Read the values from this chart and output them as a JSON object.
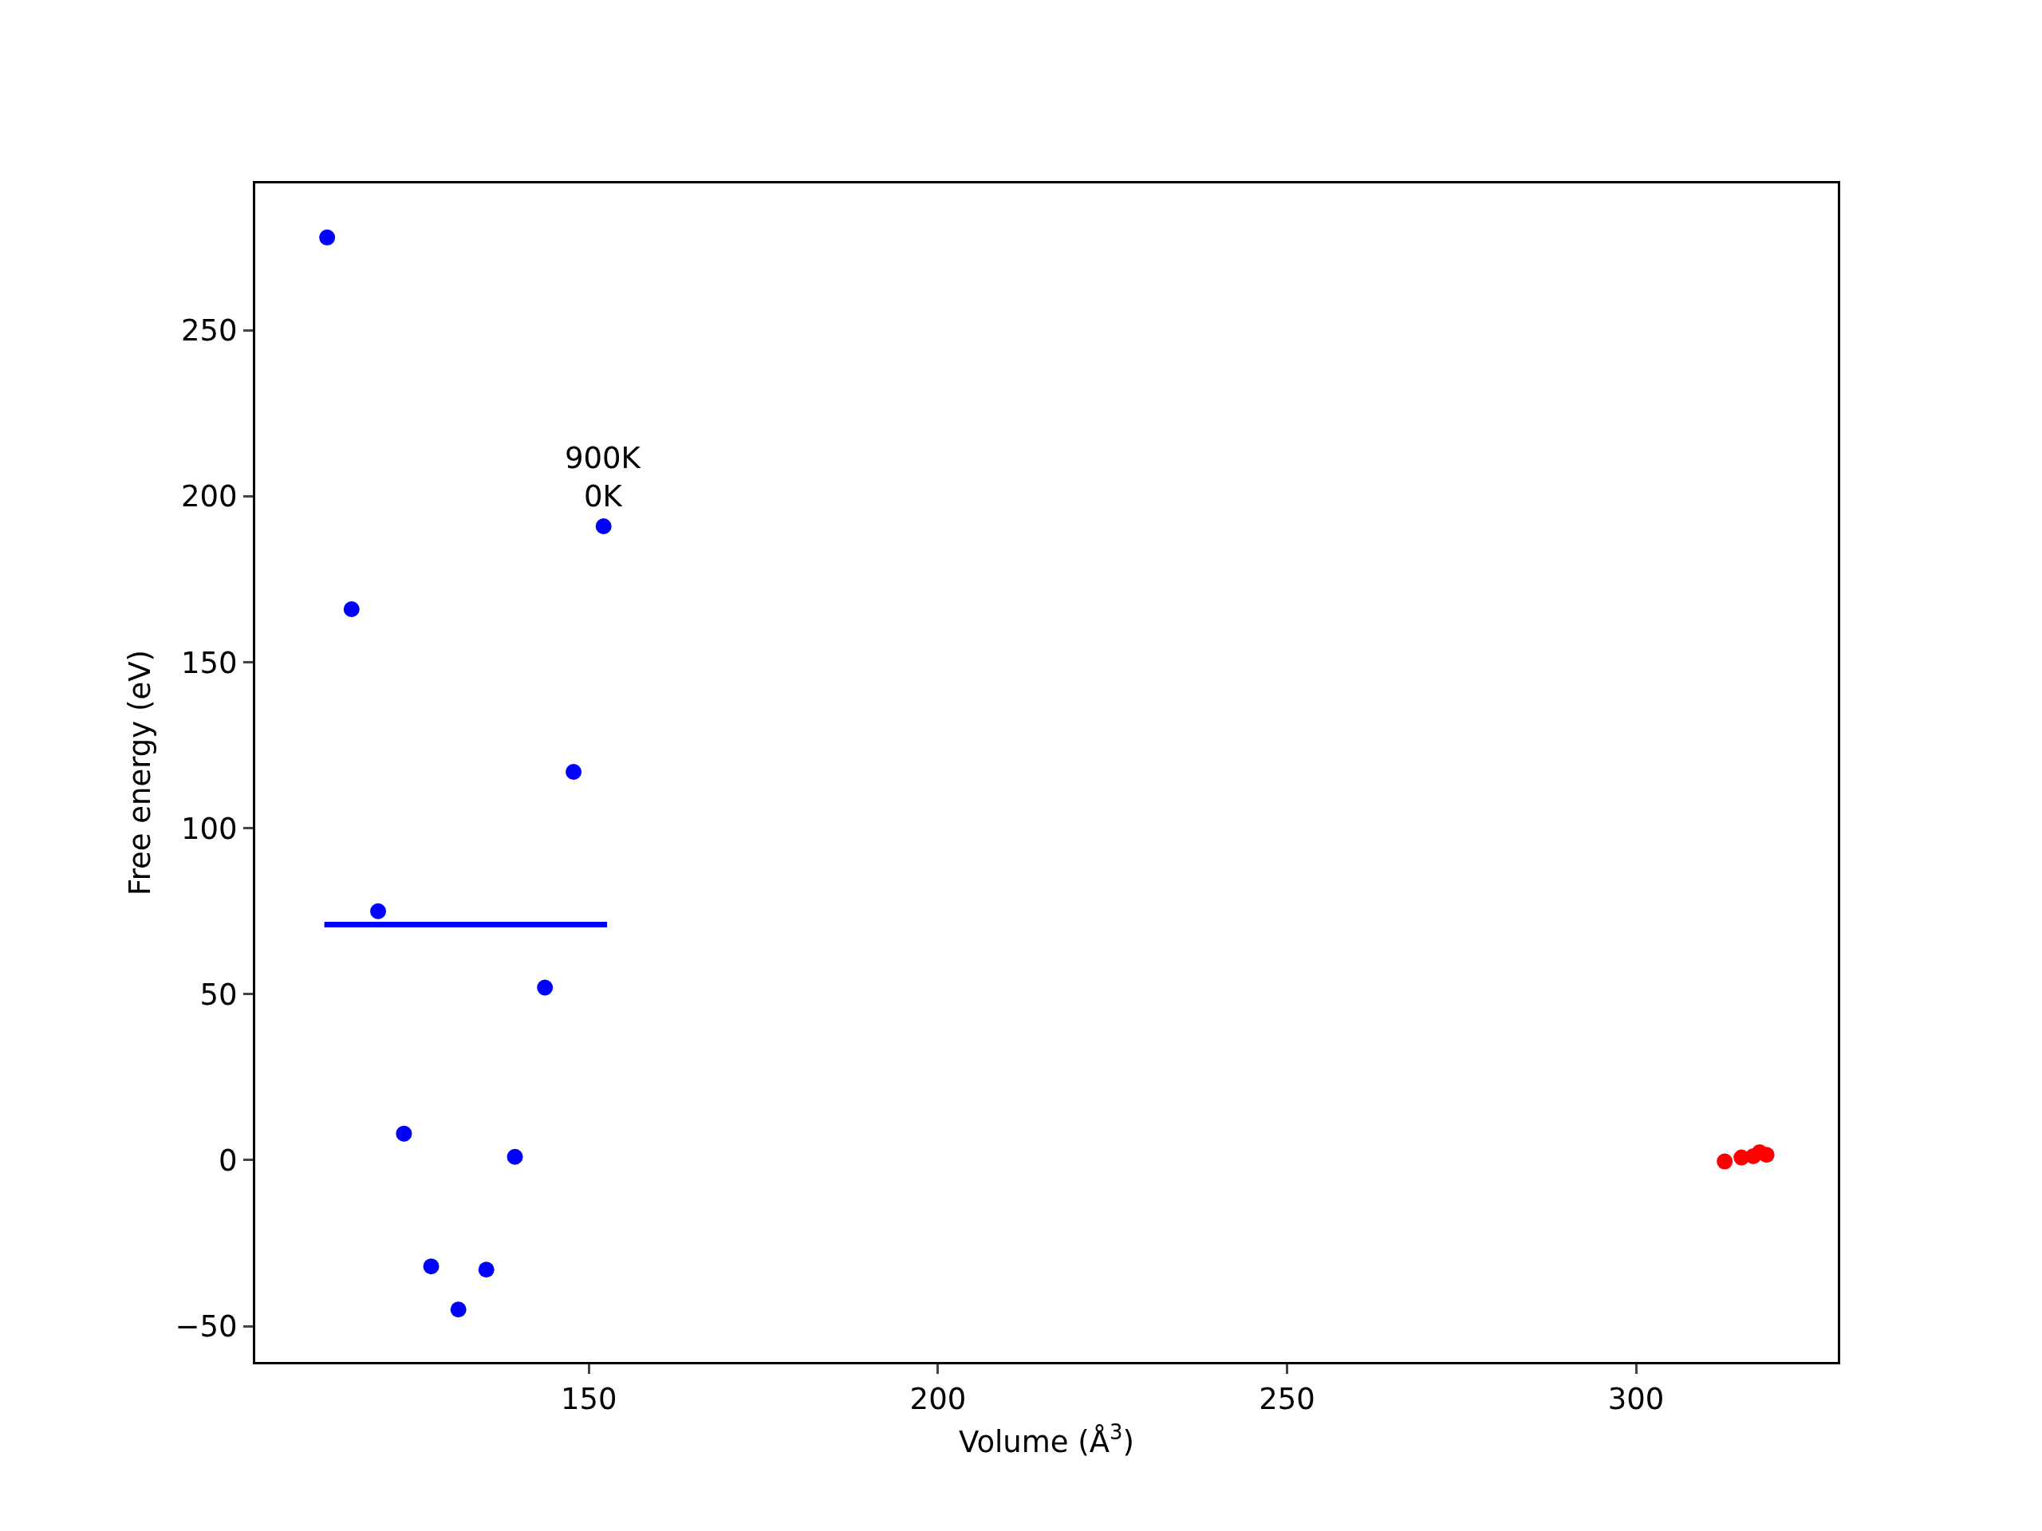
{
  "chart_data": {
    "type": "scatter",
    "xlabel": "Volume (Å$^{3}$)",
    "ylabel": "Free energy (eV)",
    "xlim": [
      102.2,
      328.9
    ],
    "ylim": [
      -60.8,
      294.3
    ],
    "xticks": [
      150,
      200,
      250,
      300
    ],
    "yticks": [
      -50,
      0,
      50,
      100,
      150,
      200,
      250
    ],
    "grid": false,
    "series": [
      {
        "color": "#0000ff",
        "marker": "circle",
        "x": [
          112.5,
          116.0,
          119.8,
          123.5,
          127.4,
          131.3,
          135.3,
          139.4,
          143.7,
          147.8,
          152.1
        ],
        "values": [
          278,
          166,
          75,
          8,
          -32,
          -45,
          -33,
          1,
          52,
          117,
          191
        ]
      },
      {
        "type": "line",
        "color": "#0000ff",
        "x": [
          112.1,
          152.6
        ],
        "values": [
          71,
          71
        ]
      },
      {
        "color": "#ff0000",
        "marker": "circle",
        "x": [
          312.7,
          315.1,
          316.8,
          317.7,
          318.7
        ],
        "values": [
          -0.4,
          0.8,
          1.2,
          2.4,
          1.6
        ]
      }
    ],
    "annotations": [
      {
        "text": "0K",
        "x": 152.1,
        "y": 191
      },
      {
        "text": "900K",
        "x": 152.1,
        "y": 191
      }
    ]
  }
}
